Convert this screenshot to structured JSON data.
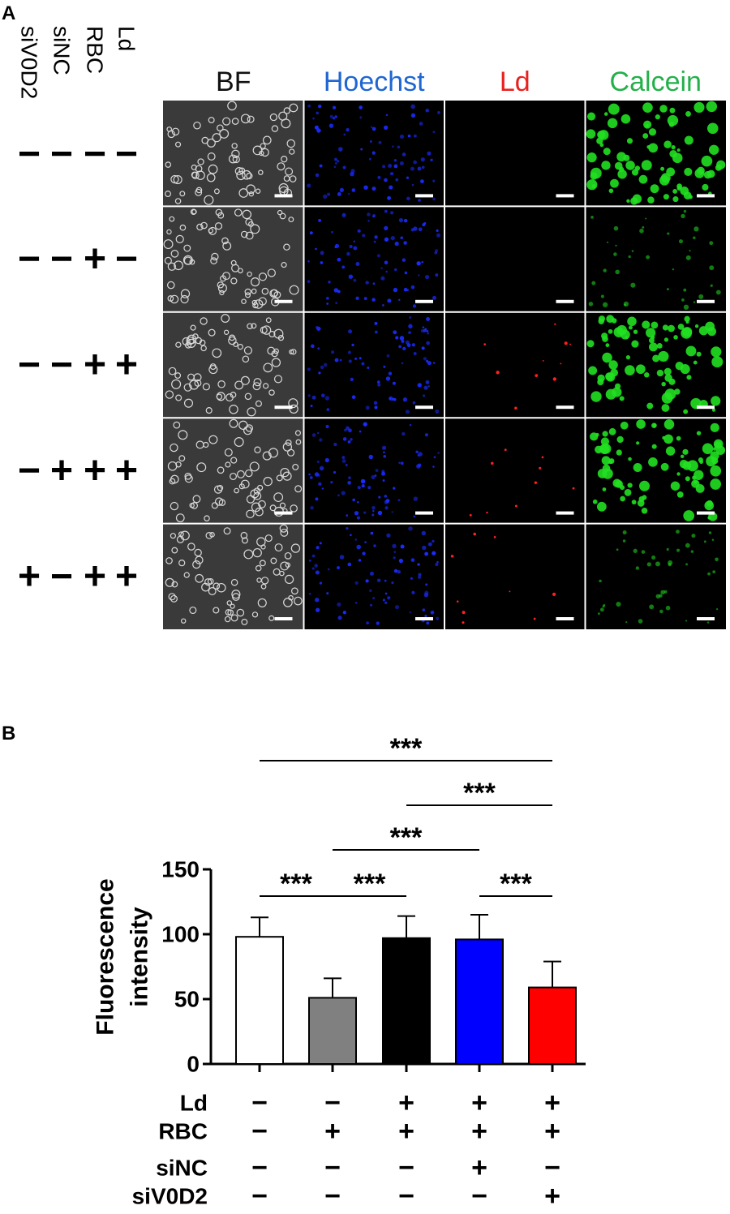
{
  "panel_a": {
    "label": "A",
    "condition_labels": [
      "siV0D2",
      "siNC",
      "RBC",
      "Ld"
    ],
    "channel_headers": [
      {
        "label": "BF",
        "color": "#111111"
      },
      {
        "label": "Hoechst",
        "color": "#1f66d1"
      },
      {
        "label": "Ld",
        "color": "#e8211e"
      },
      {
        "label": "Calcein",
        "color": "#23b04a"
      }
    ],
    "rows": [
      {
        "signs": [
          "-",
          "-",
          "-",
          "-"
        ],
        "calcein_level": 1.0,
        "ld_level": 0.0
      },
      {
        "signs": [
          "-",
          "-",
          "+",
          "-"
        ],
        "calcein_level": 0.25,
        "ld_level": 0.0
      },
      {
        "signs": [
          "-",
          "-",
          "+",
          "+"
        ],
        "calcein_level": 1.0,
        "ld_level": 0.4
      },
      {
        "signs": [
          "-",
          "+",
          "+",
          "+"
        ],
        "calcein_level": 1.0,
        "ld_level": 0.35
      },
      {
        "signs": [
          "+",
          "-",
          "+",
          "+"
        ],
        "calcein_level": 0.3,
        "ld_level": 0.35
      }
    ]
  },
  "chart_data": {
    "type": "bar",
    "panel_label": "B",
    "title": "",
    "ylabel_lines": [
      "Fluorescence",
      "intensity"
    ],
    "ylim": [
      0,
      150
    ],
    "yticks": [
      0,
      50,
      100,
      150
    ],
    "values": [
      98,
      51,
      97,
      96,
      59
    ],
    "errors": [
      15,
      15,
      17,
      19,
      20
    ],
    "bar_colors": [
      "#ffffff",
      "#808080",
      "#000000",
      "#0000ff",
      "#ff0000"
    ],
    "significance": [
      {
        "from": 0,
        "to": 4,
        "label": "***"
      },
      {
        "from": 2,
        "to": 4,
        "label": "***"
      },
      {
        "from": 1,
        "to": 3,
        "label": "***"
      },
      {
        "from": 0,
        "to": 1,
        "label": "***"
      },
      {
        "from": 1,
        "to": 2,
        "label": "***"
      },
      {
        "from": 3,
        "to": 4,
        "label": "***"
      }
    ],
    "condition_table": [
      {
        "label": "Ld",
        "signs": [
          "-",
          "-",
          "+",
          "+",
          "+"
        ]
      },
      {
        "label": "RBC",
        "signs": [
          "-",
          "+",
          "+",
          "+",
          "+"
        ]
      },
      {
        "label": "siNC",
        "signs": [
          "-",
          "-",
          "-",
          "+",
          "-"
        ]
      },
      {
        "label": "siV0D2",
        "signs": [
          "-",
          "-",
          "-",
          "-",
          "+"
        ]
      }
    ]
  }
}
